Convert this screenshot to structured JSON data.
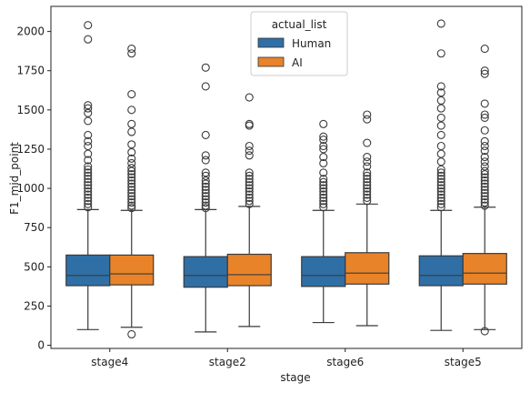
{
  "chart_data": {
    "type": "box",
    "title": "",
    "xlabel": "stage",
    "ylabel": "F1_mid_point",
    "ylim": [
      -20,
      2160
    ],
    "yticks": [
      0,
      250,
      500,
      750,
      1000,
      1250,
      1500,
      1750,
      2000
    ],
    "categories": [
      "stage4",
      "stage2",
      "stage6",
      "stage5"
    ],
    "legend": {
      "title": "actual_list",
      "position": "top-center"
    },
    "series": [
      {
        "name": "Human",
        "color": "#2f6fa6",
        "boxes": [
          {
            "whislo": 100,
            "q1": 380,
            "med": 445,
            "q3": 575,
            "whishi": 865,
            "fliers": [
              2040,
              1950,
              1530,
              1510,
              1480,
              1430,
              1340,
              1300,
              1270,
              1220,
              1180,
              1140,
              1120,
              1100,
              1080,
              1060,
              1040,
              1020,
              1000,
              980,
              960,
              940,
              920,
              900,
              880
            ]
          },
          {
            "whislo": 85,
            "q1": 370,
            "med": 445,
            "q3": 565,
            "whishi": 865,
            "fliers": [
              1770,
              1650,
              1340,
              1210,
              1180,
              1100,
              1080,
              1050,
              1030,
              1010,
              990,
              970,
              950,
              930,
              910,
              890,
              875
            ]
          },
          {
            "whislo": 145,
            "q1": 375,
            "med": 445,
            "q3": 565,
            "whishi": 860,
            "fliers": [
              1410,
              1330,
              1310,
              1270,
              1250,
              1200,
              1160,
              1100,
              1060,
              1040,
              1020,
              1000,
              980,
              960,
              940,
              920,
              900,
              880
            ]
          },
          {
            "whislo": 95,
            "q1": 380,
            "med": 445,
            "q3": 570,
            "whishi": 860,
            "fliers": [
              2050,
              1860,
              1650,
              1610,
              1560,
              1510,
              1450,
              1400,
              1340,
              1270,
              1220,
              1170,
              1120,
              1100,
              1080,
              1060,
              1040,
              1020,
              1000,
              980,
              960,
              940,
              920,
              900,
              880
            ]
          }
        ]
      },
      {
        "name": "AI",
        "color": "#e8832a",
        "boxes": [
          {
            "whislo": 115,
            "q1": 385,
            "med": 455,
            "q3": 575,
            "whishi": 860,
            "fliers": [
              1890,
              1860,
              1600,
              1500,
              1410,
              1360,
              1280,
              1230,
              1190,
              1160,
              1130,
              1110,
              1090,
              1070,
              1050,
              1030,
              1010,
              990,
              970,
              950,
              930,
              910,
              890,
              875,
              70
            ]
          },
          {
            "whislo": 120,
            "q1": 380,
            "med": 450,
            "q3": 580,
            "whishi": 885,
            "fliers": [
              1580,
              1410,
              1400,
              1270,
              1240,
              1210,
              1100,
              1080,
              1060,
              1040,
              1020,
              1000,
              980,
              960,
              940,
              920,
              900
            ]
          },
          {
            "whislo": 125,
            "q1": 390,
            "med": 460,
            "q3": 590,
            "whishi": 900,
            "fliers": [
              1470,
              1440,
              1290,
              1200,
              1170,
              1140,
              1100,
              1080,
              1060,
              1040,
              1020,
              1000,
              980,
              960,
              940,
              920
            ]
          },
          {
            "whislo": 100,
            "q1": 390,
            "med": 460,
            "q3": 585,
            "whishi": 880,
            "fliers": [
              1890,
              1750,
              1730,
              1540,
              1470,
              1450,
              1370,
              1300,
              1270,
              1240,
              1200,
              1170,
              1140,
              1110,
              1090,
              1070,
              1050,
              1030,
              1010,
              990,
              970,
              950,
              930,
              910,
              890,
              90
            ]
          }
        ]
      }
    ]
  }
}
